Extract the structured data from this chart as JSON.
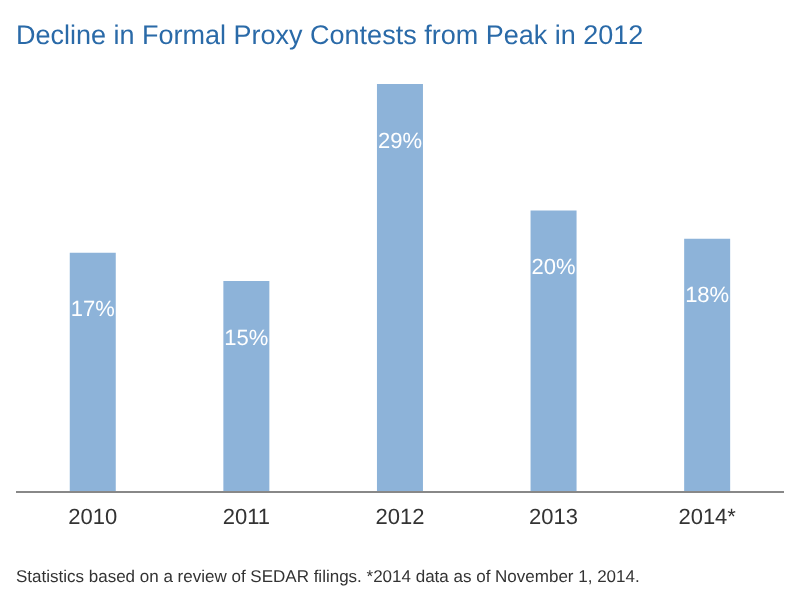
{
  "chart_data": {
    "type": "bar",
    "title": "Decline in Formal Proxy Contests from Peak in 2012",
    "categories": [
      "2010",
      "2011",
      "2012",
      "2013",
      "2014*"
    ],
    "values": [
      17,
      15,
      29,
      20,
      18
    ],
    "value_labels": [
      "17%",
      "15%",
      "29%",
      "20%",
      "18%"
    ],
    "color": "#8db3d9",
    "annotations": [
      "Statistics based on a review of SEDAR filings. *2014 data as of November 1, 2014."
    ]
  }
}
